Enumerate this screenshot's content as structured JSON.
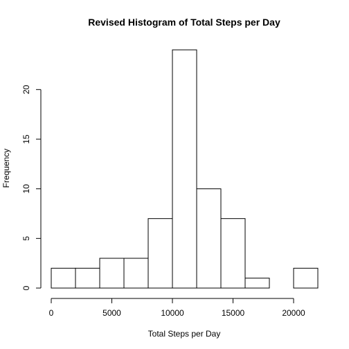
{
  "chart_data": {
    "type": "bar",
    "title": "Revised Histogram of Total Steps per Day",
    "xlabel": "Total Steps per Day",
    "ylabel": "Frequency",
    "bins": [
      {
        "start": 0,
        "end": 2000,
        "count": 2
      },
      {
        "start": 2000,
        "end": 4000,
        "count": 2
      },
      {
        "start": 4000,
        "end": 6000,
        "count": 3
      },
      {
        "start": 6000,
        "end": 8000,
        "count": 3
      },
      {
        "start": 8000,
        "end": 10000,
        "count": 7
      },
      {
        "start": 10000,
        "end": 12000,
        "count": 24
      },
      {
        "start": 12000,
        "end": 14000,
        "count": 10
      },
      {
        "start": 14000,
        "end": 16000,
        "count": 7
      },
      {
        "start": 16000,
        "end": 18000,
        "count": 1
      },
      {
        "start": 18000,
        "end": 20000,
        "count": 0
      },
      {
        "start": 20000,
        "end": 22000,
        "count": 2
      }
    ],
    "x_ticks": [
      0,
      5000,
      10000,
      15000,
      20000
    ],
    "y_ticks": [
      0,
      5,
      10,
      15,
      20
    ],
    "xlim": [
      0,
      22000
    ],
    "ylim": [
      0,
      24
    ],
    "grid": false,
    "bar_fill": "#ffffff",
    "bar_stroke": "#000000"
  }
}
